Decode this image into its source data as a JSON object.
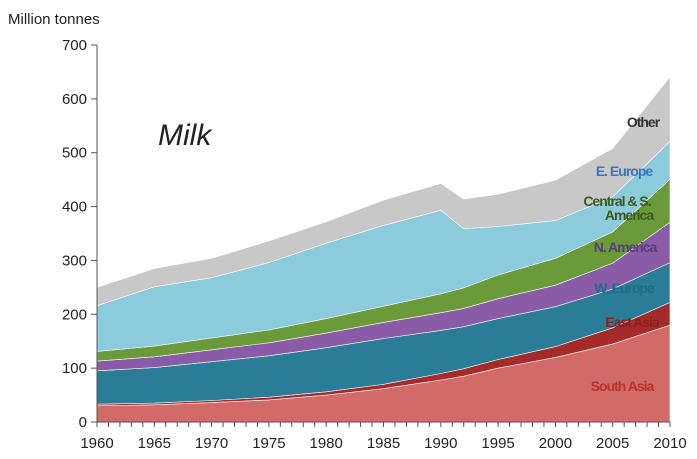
{
  "chart_data": {
    "type": "area",
    "stacked": true,
    "title": "Milk",
    "ylabel": "Million tonnes",
    "xlabel": "",
    "xlim": [
      1960,
      2010
    ],
    "ylim": [
      0,
      700
    ],
    "x_ticks": [
      "1960",
      "1965",
      "1970",
      "1975",
      "1980",
      "1985",
      "1990",
      "1995",
      "2000",
      "2005",
      "2010"
    ],
    "y_ticks": [
      "0",
      "100",
      "200",
      "300",
      "400",
      "500",
      "600",
      "700"
    ],
    "x": [
      1960,
      1965,
      1970,
      1975,
      1980,
      1985,
      1990,
      1992,
      1995,
      2000,
      2005,
      2010
    ],
    "series": [
      {
        "name": "South Asia",
        "color": "#d26b68",
        "label_color": "#b8322c",
        "values": [
          30,
          32,
          36,
          41,
          50,
          62,
          78,
          85,
          100,
          120,
          145,
          180
        ]
      },
      {
        "name": "East Asia",
        "color": "#a52a2a",
        "label_color": "#8e1f1f",
        "values": [
          3,
          3,
          4,
          5,
          6,
          8,
          12,
          14,
          16,
          20,
          30,
          42
        ]
      },
      {
        "name": "W. Europe",
        "color": "#2b7c96",
        "label_color": "#1f6d8a",
        "values": [
          62,
          66,
          72,
          77,
          82,
          85,
          80,
          78,
          76,
          74,
          72,
          74
        ]
      },
      {
        "name": "N. America",
        "color": "#8a5ca8",
        "label_color": "#5a3f77",
        "values": [
          18,
          20,
          22,
          24,
          27,
          30,
          33,
          34,
          37,
          40,
          48,
          75
        ]
      },
      {
        "name": "Central & S. America",
        "color": "#6a9a3a",
        "label_color": "#3d5a1c",
        "values": [
          18,
          20,
          22,
          24,
          27,
          30,
          35,
          38,
          44,
          50,
          58,
          80
        ]
      },
      {
        "name": "E. Europe",
        "color": "#8ccbdb",
        "label_color": "#3a74c0",
        "values": [
          85,
          110,
          112,
          125,
          140,
          150,
          155,
          110,
          90,
          70,
          65,
          70
        ]
      },
      {
        "name": "Other",
        "color": "#c8c8c8",
        "label_color": "#333333",
        "values": [
          34,
          34,
          36,
          40,
          40,
          47,
          50,
          55,
          60,
          75,
          90,
          120
        ]
      }
    ]
  }
}
